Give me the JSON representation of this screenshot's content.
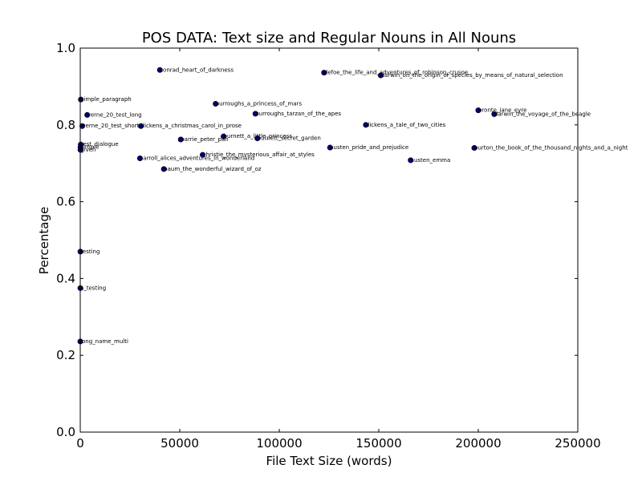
{
  "chart_data": {
    "type": "scatter",
    "title": "POS DATA: Text size and Regular Nouns in All Nouns",
    "xlabel": "File Text Size (words)",
    "ylabel": "Percentage",
    "xlim": [
      0,
      250000
    ],
    "ylim": [
      0.0,
      1.0
    ],
    "x_ticks": [
      0,
      50000,
      100000,
      150000,
      200000,
      250000
    ],
    "x_tick_labels": [
      "0",
      "50000",
      "100000",
      "150000",
      "200000",
      "250000"
    ],
    "y_ticks": [
      0.0,
      0.2,
      0.4,
      0.6,
      0.8,
      1.0
    ],
    "y_tick_labels": [
      "0.0",
      "0.2",
      "0.4",
      "0.6",
      "0.8",
      "1.0"
    ],
    "grid": false,
    "marker_color": "#00007f",
    "points": [
      {
        "label": "conrad_heart_of_darkness",
        "x": 40000,
        "y": 0.943
      },
      {
        "label": "defoe_the_life_and_adventures_of_robinson_crusoe",
        "x": 122500,
        "y": 0.936
      },
      {
        "label": "darwin_on_the_origin_of_species_by_means_of_natural_selection",
        "x": 151000,
        "y": 0.929
      },
      {
        "label": "simple_paragraph",
        "x": 300,
        "y": 0.866
      },
      {
        "label": "burroughs_a_princess_of_mars",
        "x": 68000,
        "y": 0.855
      },
      {
        "label": "bronte_jane_eyre",
        "x": 200000,
        "y": 0.838
      },
      {
        "label": "burroughs_tarzan_of_the_apes",
        "x": 88000,
        "y": 0.829
      },
      {
        "label": "darwin_the_voyage_of_the_beagle",
        "x": 208000,
        "y": 0.828
      },
      {
        "label": "verne_20_test_long",
        "x": 3500,
        "y": 0.826
      },
      {
        "label": "dickens_a_tale_of_two_cities",
        "x": 143500,
        "y": 0.8
      },
      {
        "label": "verne_20_test_short",
        "x": 1000,
        "y": 0.797
      },
      {
        "label": "dickens_a_christmas_carol_in_prose",
        "x": 30500,
        "y": 0.797
      },
      {
        "label": "burnett_a_little_princess",
        "x": 72000,
        "y": 0.77
      },
      {
        "label": "burnett_secret_garden",
        "x": 89000,
        "y": 0.765
      },
      {
        "label": "barrie_peter_pan",
        "x": 50500,
        "y": 0.762
      },
      {
        "label": "test_dialogue",
        "x": 250,
        "y": 0.749
      },
      {
        "label": "simple",
        "x": 120,
        "y": 0.742
      },
      {
        "label": "austen_pride_and_prejudice",
        "x": 125500,
        "y": 0.741
      },
      {
        "label": "burton_the_book_of_the_thousand_nights_and_a_night",
        "x": 198000,
        "y": 0.74
      },
      {
        "label": "given",
        "x": 80,
        "y": 0.735
      },
      {
        "label": "christie_the_mysterious_affair_at_styles",
        "x": 61500,
        "y": 0.722
      },
      {
        "label": "carroll_alices_adventures_in_wonderland",
        "x": 30000,
        "y": 0.713
      },
      {
        "label": "austen_emma",
        "x": 166000,
        "y": 0.708
      },
      {
        "label": "baum_the_wonderful_wizard_of_oz",
        "x": 42000,
        "y": 0.685
      },
      {
        "label": "testing",
        "x": 60,
        "y": 0.47
      },
      {
        "label": "a_testing",
        "x": 40,
        "y": 0.375
      },
      {
        "label": "long_name_multi",
        "x": 30,
        "y": 0.236
      }
    ]
  }
}
